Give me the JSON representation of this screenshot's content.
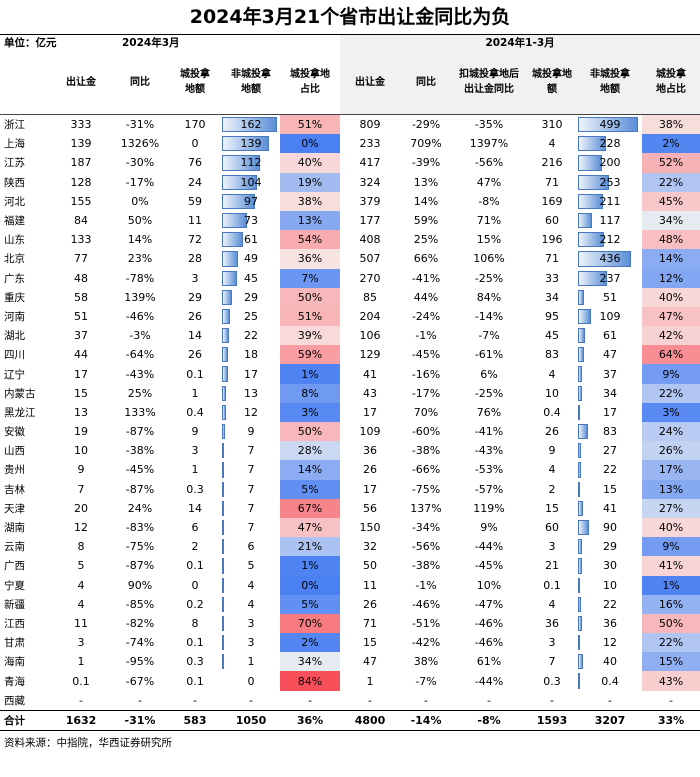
{
  "title": "2024年3月21个省市出让金同比为负",
  "unit_label": "单位：亿元",
  "section_march": "2024年3月",
  "section_q1": "2024年1-3月",
  "headers": {
    "m_sales": "出让金",
    "m_yoy": "同比",
    "m_chengtou": "城投拿地额",
    "m_nonchengtou": "非城投拿地额",
    "m_share": "城投拿地占比",
    "q_sales": "出让金",
    "q_yoy": "同比",
    "q_ex_yoy": "扣城投拿地后出让金同比",
    "q_chengtou": "城投拿地额",
    "q_nonchengtou": "非城投拿地额",
    "q_share": "城投拿地占比"
  },
  "rows": [
    {
      "prov": "浙江",
      "m_sales": "333",
      "m_yoy": "-31%",
      "m_ct": "170",
      "m_nct": 162,
      "m_share": "51%",
      "q_sales": "809",
      "q_yoy": "-29%",
      "q_ex": "-35%",
      "q_ct": "310",
      "q_nct": 499,
      "q_share": "38%"
    },
    {
      "prov": "上海",
      "m_sales": "139",
      "m_yoy": "1326%",
      "m_ct": "0",
      "m_nct": 139,
      "m_share": "0%",
      "q_sales": "233",
      "q_yoy": "709%",
      "q_ex": "1397%",
      "q_ct": "4",
      "q_nct": 228,
      "q_share": "2%"
    },
    {
      "prov": "江苏",
      "m_sales": "187",
      "m_yoy": "-30%",
      "m_ct": "76",
      "m_nct": 112,
      "m_share": "40%",
      "q_sales": "417",
      "q_yoy": "-39%",
      "q_ex": "-56%",
      "q_ct": "216",
      "q_nct": 200,
      "q_share": "52%"
    },
    {
      "prov": "陕西",
      "m_sales": "128",
      "m_yoy": "-17%",
      "m_ct": "24",
      "m_nct": 104,
      "m_share": "19%",
      "q_sales": "324",
      "q_yoy": "13%",
      "q_ex": "47%",
      "q_ct": "71",
      "q_nct": 253,
      "q_share": "22%"
    },
    {
      "prov": "河北",
      "m_sales": "155",
      "m_yoy": "0%",
      "m_ct": "59",
      "m_nct": 97,
      "m_share": "38%",
      "q_sales": "379",
      "q_yoy": "14%",
      "q_ex": "-8%",
      "q_ct": "169",
      "q_nct": 211,
      "q_share": "45%"
    },
    {
      "prov": "福建",
      "m_sales": "84",
      "m_yoy": "50%",
      "m_ct": "11",
      "m_nct": 73,
      "m_share": "13%",
      "q_sales": "177",
      "q_yoy": "59%",
      "q_ex": "71%",
      "q_ct": "60",
      "q_nct": 117,
      "q_share": "34%"
    },
    {
      "prov": "山东",
      "m_sales": "133",
      "m_yoy": "14%",
      "m_ct": "72",
      "m_nct": 61,
      "m_share": "54%",
      "q_sales": "408",
      "q_yoy": "25%",
      "q_ex": "15%",
      "q_ct": "196",
      "q_nct": 212,
      "q_share": "48%"
    },
    {
      "prov": "北京",
      "m_sales": "77",
      "m_yoy": "23%",
      "m_ct": "28",
      "m_nct": 49,
      "m_share": "36%",
      "q_sales": "507",
      "q_yoy": "66%",
      "q_ex": "106%",
      "q_ct": "71",
      "q_nct": 436,
      "q_share": "14%"
    },
    {
      "prov": "广东",
      "m_sales": "48",
      "m_yoy": "-78%",
      "m_ct": "3",
      "m_nct": 45,
      "m_share": "7%",
      "q_sales": "270",
      "q_yoy": "-41%",
      "q_ex": "-25%",
      "q_ct": "33",
      "q_nct": 237,
      "q_share": "12%"
    },
    {
      "prov": "重庆",
      "m_sales": "58",
      "m_yoy": "139%",
      "m_ct": "29",
      "m_nct": 29,
      "m_share": "50%",
      "q_sales": "85",
      "q_yoy": "44%",
      "q_ex": "84%",
      "q_ct": "34",
      "q_nct": 51,
      "q_share": "40%"
    },
    {
      "prov": "河南",
      "m_sales": "51",
      "m_yoy": "-46%",
      "m_ct": "26",
      "m_nct": 25,
      "m_share": "51%",
      "q_sales": "204",
      "q_yoy": "-24%",
      "q_ex": "-14%",
      "q_ct": "95",
      "q_nct": 109,
      "q_share": "47%"
    },
    {
      "prov": "湖北",
      "m_sales": "37",
      "m_yoy": "-3%",
      "m_ct": "14",
      "m_nct": 22,
      "m_share": "39%",
      "q_sales": "106",
      "q_yoy": "-1%",
      "q_ex": "-7%",
      "q_ct": "45",
      "q_nct": 61,
      "q_share": "42%"
    },
    {
      "prov": "四川",
      "m_sales": "44",
      "m_yoy": "-64%",
      "m_ct": "26",
      "m_nct": 18,
      "m_share": "59%",
      "q_sales": "129",
      "q_yoy": "-45%",
      "q_ex": "-61%",
      "q_ct": "83",
      "q_nct": 47,
      "q_share": "64%"
    },
    {
      "prov": "辽宁",
      "m_sales": "17",
      "m_yoy": "-43%",
      "m_ct": "0.1",
      "m_nct": 17,
      "m_share": "1%",
      "q_sales": "41",
      "q_yoy": "-16%",
      "q_ex": "6%",
      "q_ct": "4",
      "q_nct": 37,
      "q_share": "9%"
    },
    {
      "prov": "内蒙古",
      "m_sales": "15",
      "m_yoy": "25%",
      "m_ct": "1",
      "m_nct": 13,
      "m_share": "8%",
      "q_sales": "43",
      "q_yoy": "-17%",
      "q_ex": "-25%",
      "q_ct": "10",
      "q_nct": 34,
      "q_share": "22%"
    },
    {
      "prov": "黑龙江",
      "m_sales": "13",
      "m_yoy": "133%",
      "m_ct": "0.4",
      "m_nct": 12,
      "m_share": "3%",
      "q_sales": "17",
      "q_yoy": "70%",
      "q_ex": "76%",
      "q_ct": "0.4",
      "q_nct": 17,
      "q_share": "3%"
    },
    {
      "prov": "安徽",
      "m_sales": "19",
      "m_yoy": "-87%",
      "m_ct": "9",
      "m_nct": 9,
      "m_share": "50%",
      "q_sales": "109",
      "q_yoy": "-60%",
      "q_ex": "-41%",
      "q_ct": "26",
      "q_nct": 83,
      "q_share": "24%"
    },
    {
      "prov": "山西",
      "m_sales": "10",
      "m_yoy": "-38%",
      "m_ct": "3",
      "m_nct": 7,
      "m_share": "28%",
      "q_sales": "36",
      "q_yoy": "-38%",
      "q_ex": "-43%",
      "q_ct": "9",
      "q_nct": 27,
      "q_share": "26%"
    },
    {
      "prov": "贵州",
      "m_sales": "9",
      "m_yoy": "-45%",
      "m_ct": "1",
      "m_nct": 7,
      "m_share": "14%",
      "q_sales": "26",
      "q_yoy": "-66%",
      "q_ex": "-53%",
      "q_ct": "4",
      "q_nct": 22,
      "q_share": "17%"
    },
    {
      "prov": "吉林",
      "m_sales": "7",
      "m_yoy": "-87%",
      "m_ct": "0.3",
      "m_nct": 7,
      "m_share": "5%",
      "q_sales": "17",
      "q_yoy": "-75%",
      "q_ex": "-57%",
      "q_ct": "2",
      "q_nct": 15,
      "q_share": "13%"
    },
    {
      "prov": "天津",
      "m_sales": "20",
      "m_yoy": "24%",
      "m_ct": "14",
      "m_nct": 7,
      "m_share": "67%",
      "q_sales": "56",
      "q_yoy": "137%",
      "q_ex": "119%",
      "q_ct": "15",
      "q_nct": 41,
      "q_share": "27%"
    },
    {
      "prov": "湖南",
      "m_sales": "12",
      "m_yoy": "-83%",
      "m_ct": "6",
      "m_nct": 7,
      "m_share": "47%",
      "q_sales": "150",
      "q_yoy": "-34%",
      "q_ex": "9%",
      "q_ct": "60",
      "q_nct": 90,
      "q_share": "40%"
    },
    {
      "prov": "云南",
      "m_sales": "8",
      "m_yoy": "-75%",
      "m_ct": "2",
      "m_nct": 6,
      "m_share": "21%",
      "q_sales": "32",
      "q_yoy": "-56%",
      "q_ex": "-44%",
      "q_ct": "3",
      "q_nct": 29,
      "q_share": "9%"
    },
    {
      "prov": "广西",
      "m_sales": "5",
      "m_yoy": "-87%",
      "m_ct": "0.1",
      "m_nct": 5,
      "m_share": "1%",
      "q_sales": "50",
      "q_yoy": "-38%",
      "q_ex": "-45%",
      "q_ct": "21",
      "q_nct": 30,
      "q_share": "41%"
    },
    {
      "prov": "宁夏",
      "m_sales": "4",
      "m_yoy": "90%",
      "m_ct": "0",
      "m_nct": 4,
      "m_share": "0%",
      "q_sales": "11",
      "q_yoy": "-1%",
      "q_ex": "10%",
      "q_ct": "0.1",
      "q_nct": 10,
      "q_share": "1%"
    },
    {
      "prov": "新疆",
      "m_sales": "4",
      "m_yoy": "-85%",
      "m_ct": "0.2",
      "m_nct": 4,
      "m_share": "5%",
      "q_sales": "26",
      "q_yoy": "-46%",
      "q_ex": "-47%",
      "q_ct": "4",
      "q_nct": 22,
      "q_share": "16%"
    },
    {
      "prov": "江西",
      "m_sales": "11",
      "m_yoy": "-82%",
      "m_ct": "8",
      "m_nct": 3,
      "m_share": "70%",
      "q_sales": "71",
      "q_yoy": "-51%",
      "q_ex": "-46%",
      "q_ct": "36",
      "q_nct": 36,
      "q_share": "50%"
    },
    {
      "prov": "甘肃",
      "m_sales": "3",
      "m_yoy": "-74%",
      "m_ct": "0.1",
      "m_nct": 3,
      "m_share": "2%",
      "q_sales": "15",
      "q_yoy": "-42%",
      "q_ex": "-46%",
      "q_ct": "3",
      "q_nct": 12,
      "q_share": "22%"
    },
    {
      "prov": "海南",
      "m_sales": "1",
      "m_yoy": "-95%",
      "m_ct": "0.3",
      "m_nct": 1,
      "m_share": "34%",
      "q_sales": "47",
      "q_yoy": "38%",
      "q_ex": "61%",
      "q_ct": "7",
      "q_nct": 40,
      "q_share": "15%"
    },
    {
      "prov": "青海",
      "m_sales": "0.1",
      "m_yoy": "-67%",
      "m_ct": "0.1",
      "m_nct": 0,
      "m_share": "84%",
      "q_sales": "1",
      "q_yoy": "-7%",
      "q_ex": "-44%",
      "q_ct": "0.3",
      "q_nct": 0.4,
      "q_share": "43%"
    },
    {
      "prov": "西藏",
      "m_sales": "-",
      "m_yoy": "-",
      "m_ct": "-",
      "m_nct": "-",
      "m_share": "-",
      "q_sales": "-",
      "q_yoy": "-",
      "q_ex": "-",
      "q_ct": "-",
      "q_nct": "-",
      "q_share": "-"
    }
  ],
  "total": {
    "prov": "合计",
    "m_sales": "1632",
    "m_yoy": "-31%",
    "m_ct": "583",
    "m_nct": "1050",
    "m_share": "36%",
    "q_sales": "4800",
    "q_yoy": "-14%",
    "q_ex": "-8%",
    "q_ct": "1593",
    "q_nct": "3207",
    "q_share": "33%"
  },
  "source": "资料来源：中指院，华西证券研究所"
}
